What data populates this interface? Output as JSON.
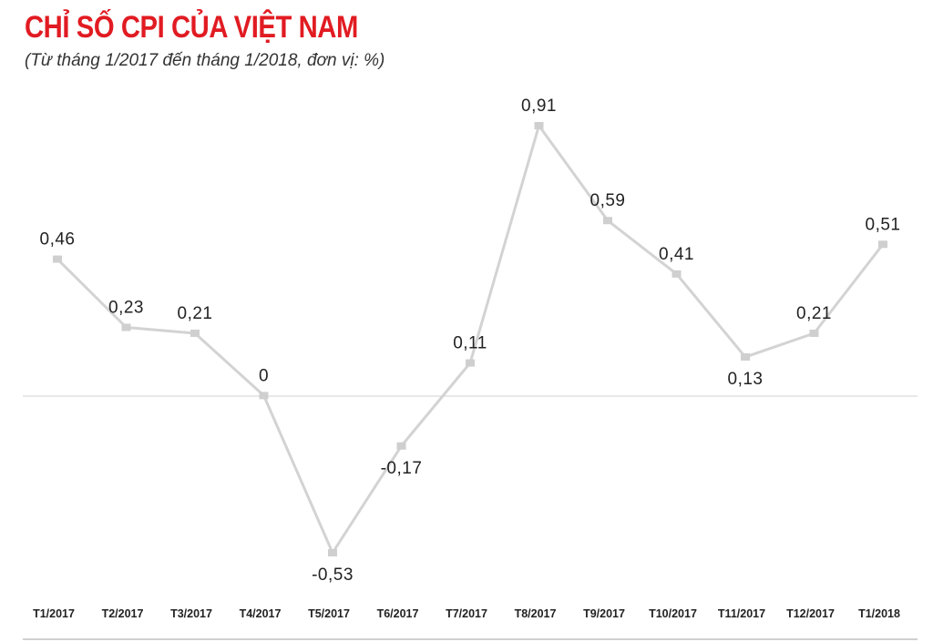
{
  "title": "CHỈ SỐ CPI CỦA VIỆT NAM",
  "subtitle": "(Từ tháng 1/2017 đến tháng 1/2018, đơn vị: %)",
  "colors": {
    "title": "#e11b22",
    "line": "#d3d3d3",
    "marker": "#cfcfcf",
    "baseline": "#d9d9d9"
  },
  "chart_data": {
    "type": "line",
    "title": "CHỈ SỐ CPI CỦA VIỆT NAM",
    "subtitle": "(Từ tháng 1/2017 đến tháng 1/2018, đơn vị: %)",
    "categories": [
      "T1/2017",
      "T2/2017",
      "T3/2017",
      "T4/2017",
      "T5/2017",
      "T6/2017",
      "T7/2017",
      "T8/2017",
      "T9/2017",
      "T10/2017",
      "T11/2017",
      "T12/2017",
      "T1/2018"
    ],
    "values": [
      0.46,
      0.23,
      0.21,
      0,
      -0.53,
      -0.17,
      0.11,
      0.91,
      0.59,
      0.41,
      0.13,
      0.21,
      0.51
    ],
    "value_labels": [
      "0,46",
      "0,23",
      "0,21",
      "0",
      "-0,53",
      "-0,17",
      "0,11",
      "0,91",
      "0,59",
      "0,41",
      "0,13",
      "0,21",
      "0,51"
    ],
    "label_position": [
      "above",
      "above",
      "above",
      "above",
      "below",
      "below",
      "above",
      "above",
      "above",
      "above",
      "below",
      "above",
      "above"
    ],
    "xlabel": "",
    "ylabel": "",
    "ylim": [
      -0.53,
      0.91
    ],
    "grid": false,
    "zero_line": true
  }
}
